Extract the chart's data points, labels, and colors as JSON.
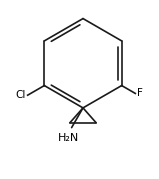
{
  "background_color": "#ffffff",
  "bond_color": "#1a1a1a",
  "text_color": "#000000",
  "cl_label": "Cl",
  "f_label": "F",
  "nh2_label": "H₂N",
  "figsize": [
    1.59,
    1.79
  ],
  "dpi": 100,
  "lw": 1.2
}
